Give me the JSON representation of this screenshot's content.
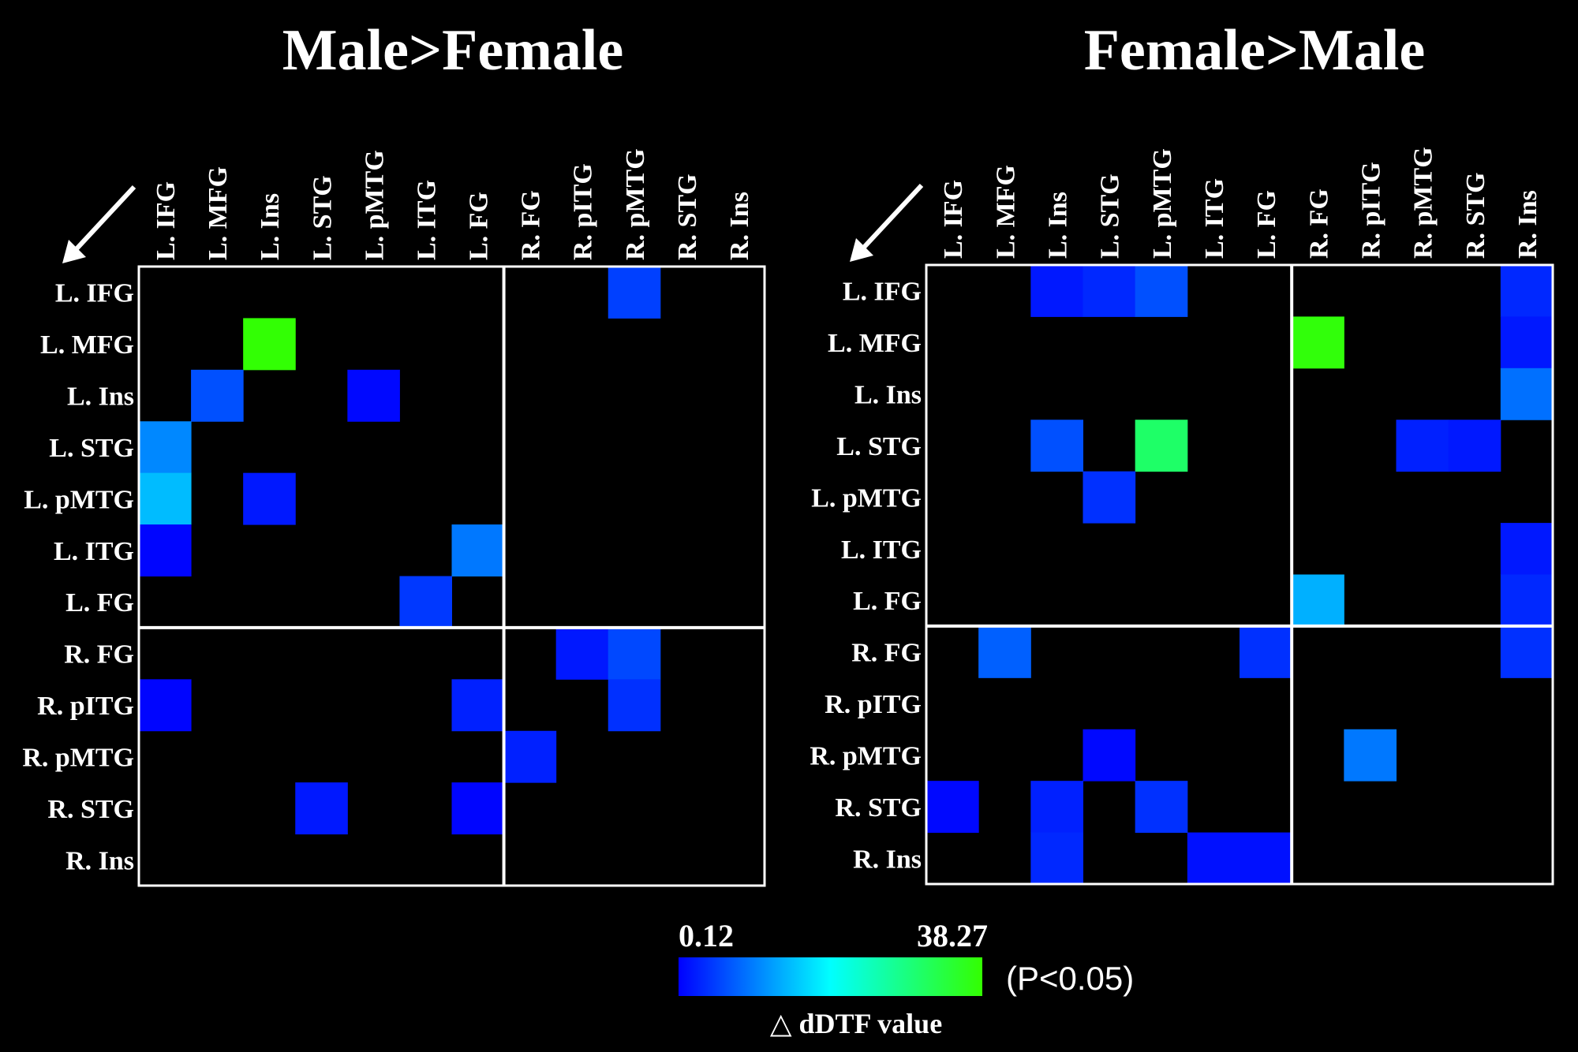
{
  "chart_data": [
    {
      "type": "heatmap",
      "title": "Male>Female",
      "rows": [
        "L. IFG",
        "L. MFG",
        "L. Ins",
        "L. STG",
        "L. pMTG",
        "L. ITG",
        "L. FG",
        "R. FG",
        "R. pITG",
        "R. pMTG",
        "R. STG",
        "R. Ins"
      ],
      "columns": [
        "L. IFG",
        "L. MFG",
        "L. Ins",
        "L. STG",
        "L. pMTG",
        "L. ITG",
        "L. FG",
        "R. FG",
        "R. pITG",
        "R. pMTG",
        "R. STG",
        "R. Ins"
      ],
      "cells": [
        {
          "row": 0,
          "col": 9,
          "value": 4.9
        },
        {
          "row": 1,
          "col": 2,
          "value": 38.0
        },
        {
          "row": 2,
          "col": 1,
          "value": 6.1
        },
        {
          "row": 2,
          "col": 4,
          "value": 0.7
        },
        {
          "row": 3,
          "col": 0,
          "value": 10.3
        },
        {
          "row": 4,
          "col": 0,
          "value": 14.2
        },
        {
          "row": 4,
          "col": 2,
          "value": 1.9
        },
        {
          "row": 5,
          "col": 0,
          "value": 0.5
        },
        {
          "row": 5,
          "col": 6,
          "value": 9.1
        },
        {
          "row": 6,
          "col": 5,
          "value": 4.3
        },
        {
          "row": 7,
          "col": 8,
          "value": 1.9
        },
        {
          "row": 7,
          "col": 9,
          "value": 5.5
        },
        {
          "row": 8,
          "col": 0,
          "value": 0.5
        },
        {
          "row": 8,
          "col": 6,
          "value": 2.5
        },
        {
          "row": 8,
          "col": 9,
          "value": 3.7
        },
        {
          "row": 9,
          "col": 7,
          "value": 2.5
        },
        {
          "row": 10,
          "col": 3,
          "value": 1.9
        },
        {
          "row": 10,
          "col": 6,
          "value": 0.5
        }
      ]
    },
    {
      "type": "heatmap",
      "title": "Female>Male",
      "rows": [
        "L. IFG",
        "L. MFG",
        "L. Ins",
        "L. STG",
        "L. pMTG",
        "L. ITG",
        "L. FG",
        "R. FG",
        "R. pITG",
        "R. pMTG",
        "R. STG",
        "R. Ins"
      ],
      "columns": [
        "L. IFG",
        "L. MFG",
        "L. Ins",
        "L. STG",
        "L. pMTG",
        "L. ITG",
        "L. FG",
        "R. FG",
        "R. pITG",
        "R. pMTG",
        "R. STG",
        "R. Ins"
      ],
      "cells": [
        {
          "row": 0,
          "col": 2,
          "value": 1.9
        },
        {
          "row": 0,
          "col": 3,
          "value": 3.1
        },
        {
          "row": 0,
          "col": 4,
          "value": 6.1
        },
        {
          "row": 0,
          "col": 11,
          "value": 3.1
        },
        {
          "row": 1,
          "col": 7,
          "value": 37.5
        },
        {
          "row": 1,
          "col": 11,
          "value": 1.9
        },
        {
          "row": 2,
          "col": 11,
          "value": 8.5
        },
        {
          "row": 3,
          "col": 2,
          "value": 6.1
        },
        {
          "row": 3,
          "col": 4,
          "value": 30.6
        },
        {
          "row": 3,
          "col": 9,
          "value": 2.5
        },
        {
          "row": 3,
          "col": 10,
          "value": 1.9
        },
        {
          "row": 4,
          "col": 3,
          "value": 3.7
        },
        {
          "row": 5,
          "col": 11,
          "value": 1.9
        },
        {
          "row": 6,
          "col": 7,
          "value": 13.3
        },
        {
          "row": 6,
          "col": 11,
          "value": 3.1
        },
        {
          "row": 7,
          "col": 1,
          "value": 7.3
        },
        {
          "row": 7,
          "col": 6,
          "value": 3.7
        },
        {
          "row": 7,
          "col": 11,
          "value": 3.7
        },
        {
          "row": 9,
          "col": 3,
          "value": 0.7
        },
        {
          "row": 9,
          "col": 8,
          "value": 9.1
        },
        {
          "row": 10,
          "col": 0,
          "value": 0.7
        },
        {
          "row": 10,
          "col": 2,
          "value": 2.5
        },
        {
          "row": 10,
          "col": 4,
          "value": 3.7
        },
        {
          "row": 11,
          "col": 2,
          "value": 3.1
        },
        {
          "row": 11,
          "col": 5,
          "value": 1.3
        },
        {
          "row": 11,
          "col": 6,
          "value": 1.3
        }
      ]
    }
  ],
  "colorbar": {
    "min_label": "0.12",
    "max_label": "38.27",
    "min": 0.12,
    "max": 38.27,
    "colors": [
      "#0000ff",
      "#00ffff",
      "#33ff00"
    ],
    "significance": "(P<0.05)",
    "label": "△ dDTF value"
  }
}
